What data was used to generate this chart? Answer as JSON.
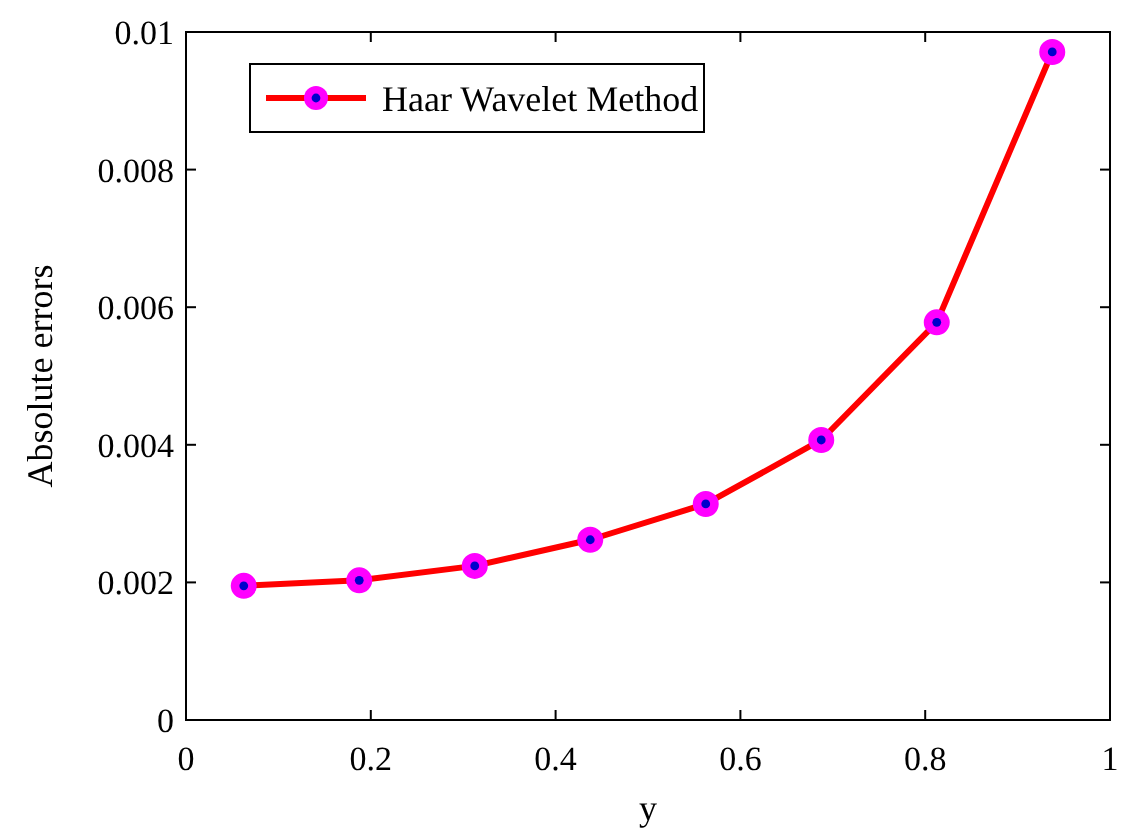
{
  "chart_data": {
    "type": "line",
    "xlabel": "y",
    "ylabel": "Absolute errors",
    "x": [
      0.0625,
      0.1875,
      0.3125,
      0.4375,
      0.5625,
      0.6875,
      0.8125,
      0.9375
    ],
    "series": [
      {
        "name": "Haar Wavelet Method",
        "color": "#ff0000",
        "values": [
          0.00195,
          0.00203,
          0.00224,
          0.00262,
          0.00314,
          0.00407,
          0.00578,
          0.00971
        ]
      }
    ],
    "xlim": [
      0,
      1
    ],
    "xticks": [
      0,
      0.2,
      0.4,
      0.6,
      0.8,
      1
    ],
    "ylim": [
      0,
      0.01
    ],
    "yticks": [
      0,
      0.002,
      0.004,
      0.006,
      0.008,
      0.01
    ],
    "legend": "top left",
    "marker": "circle",
    "line_style": "solid",
    "grid": false
  }
}
